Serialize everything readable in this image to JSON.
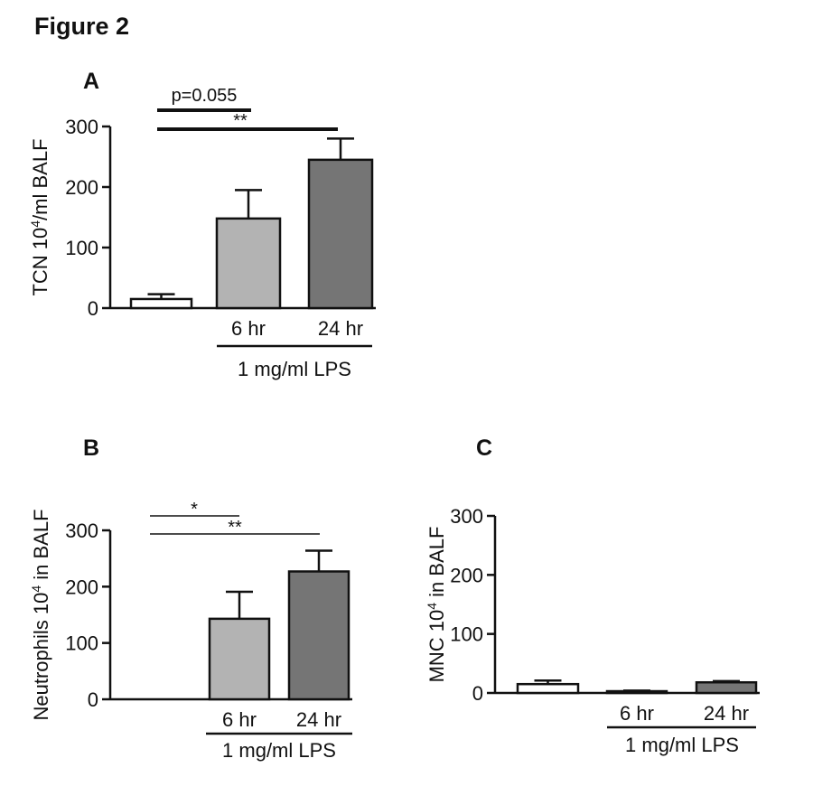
{
  "figure_title": "Figure 2",
  "chart_data": [
    {
      "panel": "A",
      "type": "bar",
      "ylabel": "TCN 10",
      "ylabel_sup": "4",
      "ylabel_rest": "/ml BALF",
      "ylim": [
        0,
        300
      ],
      "yticks": [
        "0",
        "100",
        "200",
        "300"
      ],
      "categories": [
        "",
        "6 hr",
        "24 hr"
      ],
      "values": [
        15,
        148,
        245
      ],
      "errors": [
        8,
        47,
        35
      ],
      "colors": [
        "#ffffff",
        "#b3b3b3",
        "#757575"
      ],
      "group_label": "1 mg/ml LPS",
      "comparisons": [
        {
          "label": "p=0.055",
          "from": 0,
          "to": 1,
          "underline": true
        },
        {
          "label": "**",
          "from": 0,
          "to": 2
        }
      ]
    },
    {
      "panel": "B",
      "type": "bar",
      "ylabel": "Neutrophils 10",
      "ylabel_sup": "4",
      "ylabel_rest": " in BALF",
      "ylim": [
        0,
        300
      ],
      "yticks": [
        "0",
        "100",
        "200",
        "300"
      ],
      "categories": [
        "",
        "6 hr",
        "24 hr"
      ],
      "values": [
        0,
        143,
        227
      ],
      "errors": [
        0,
        48,
        37
      ],
      "colors": [
        "#ffffff",
        "#b3b3b3",
        "#757575"
      ],
      "group_label": "1 mg/ml LPS",
      "comparisons": [
        {
          "label": "*",
          "from": 0,
          "to": 1
        },
        {
          "label": "**",
          "from": 0,
          "to": 2
        }
      ]
    },
    {
      "panel": "C",
      "type": "bar",
      "ylabel": "MNC 10",
      "ylabel_sup": "4",
      "ylabel_rest": " in BALF",
      "ylim": [
        0,
        300
      ],
      "yticks": [
        "0",
        "100",
        "200",
        "300"
      ],
      "categories": [
        "",
        "6 hr",
        "24 hr"
      ],
      "values": [
        15,
        3,
        18
      ],
      "errors": [
        6,
        1,
        2
      ],
      "colors": [
        "#ffffff",
        "#b3b3b3",
        "#757575"
      ],
      "group_label": "1 mg/ml LPS",
      "comparisons": []
    }
  ]
}
